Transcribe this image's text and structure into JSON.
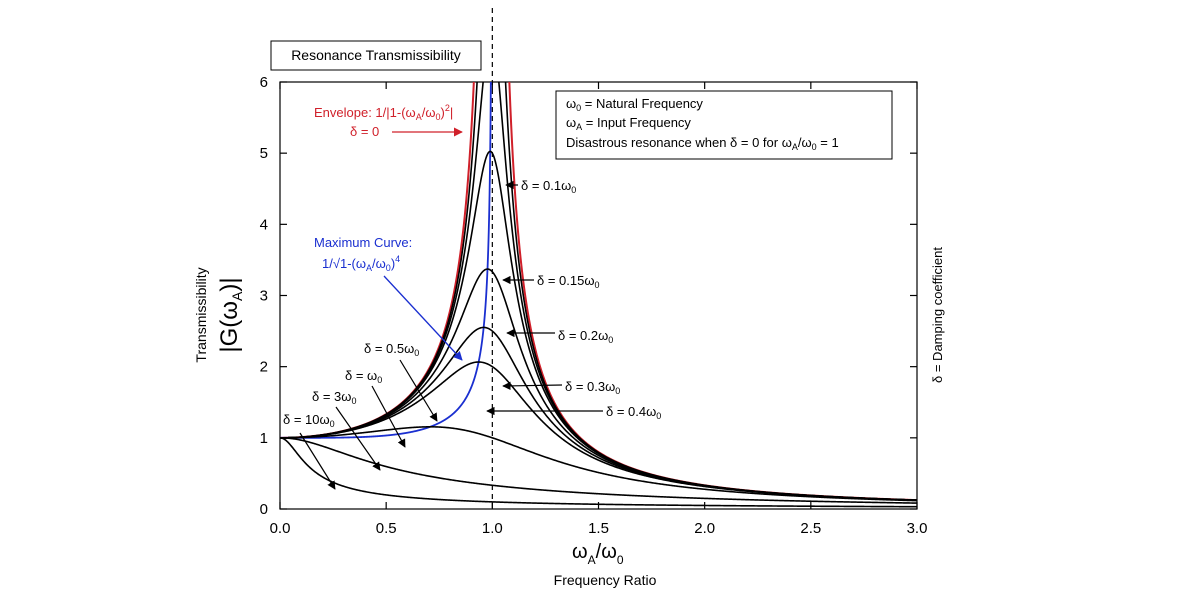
{
  "chart_data": {
    "type": "line",
    "title": "Resonance Transmissibility",
    "xlabel": "Frequency Ratio",
    "xlabel_symbol": "ωA/ω0",
    "ylabel": "Transmissibility",
    "ylabel_symbol": "|G(ωA)|",
    "right_label": "δ = Damping coefficient",
    "xlim": [
      0,
      3.0
    ],
    "ylim": [
      0,
      6
    ],
    "x_ticks": [
      "0.0",
      "0.5",
      "1.0",
      "1.5",
      "2.0",
      "2.5",
      "3.0"
    ],
    "y_ticks": [
      "0",
      "1",
      "2",
      "3",
      "4",
      "5",
      "6"
    ],
    "reference_line": {
      "x": 1.0,
      "style": "dashed"
    },
    "series": [
      {
        "name": "Envelope: 1/|1-(ωA/ω0)²|",
        "kind": "envelope",
        "color": "#d0202a"
      },
      {
        "name": "Maximum Curve: 1/√1-(ωA/ω0)⁴",
        "kind": "maximum",
        "color": "#1a2fd0"
      },
      {
        "name": "δ = 0.1ω0",
        "kind": "damped",
        "delta": 0.1,
        "color": "#000000"
      },
      {
        "name": "δ = 0.15ω0",
        "kind": "damped",
        "delta": 0.15,
        "color": "#000000"
      },
      {
        "name": "δ = 0.2ω0",
        "kind": "damped",
        "delta": 0.2,
        "color": "#000000"
      },
      {
        "name": "δ = 0.3ω0",
        "kind": "damped",
        "delta": 0.3,
        "color": "#000000"
      },
      {
        "name": "δ = 0.4ω0",
        "kind": "damped",
        "delta": 0.4,
        "color": "#000000"
      },
      {
        "name": "δ = 0.5ω0",
        "kind": "damped",
        "delta": 0.5,
        "color": "#000000"
      },
      {
        "name": "δ = ω0",
        "kind": "damped",
        "delta": 1.0,
        "color": "#000000"
      },
      {
        "name": "δ = 3ω0",
        "kind": "damped",
        "delta": 3.0,
        "color": "#000000"
      },
      {
        "name": "δ = 10ω0",
        "kind": "damped",
        "delta": 10.0,
        "color": "#000000"
      }
    ],
    "legend_box": [
      "ω0 = Natural Frequency",
      "ωA = Input Frequency",
      "Disastrous resonance when δ = 0 for ωA/ω0 = 1"
    ],
    "annotations": {
      "envelope_label": "Envelope: 1/|1-(ωA/ω0)²|",
      "delta0_label": "δ = 0",
      "maximum_label": "Maximum Curve:",
      "maximum_formula": "1/√1-(ωA/ω0)⁴"
    }
  }
}
